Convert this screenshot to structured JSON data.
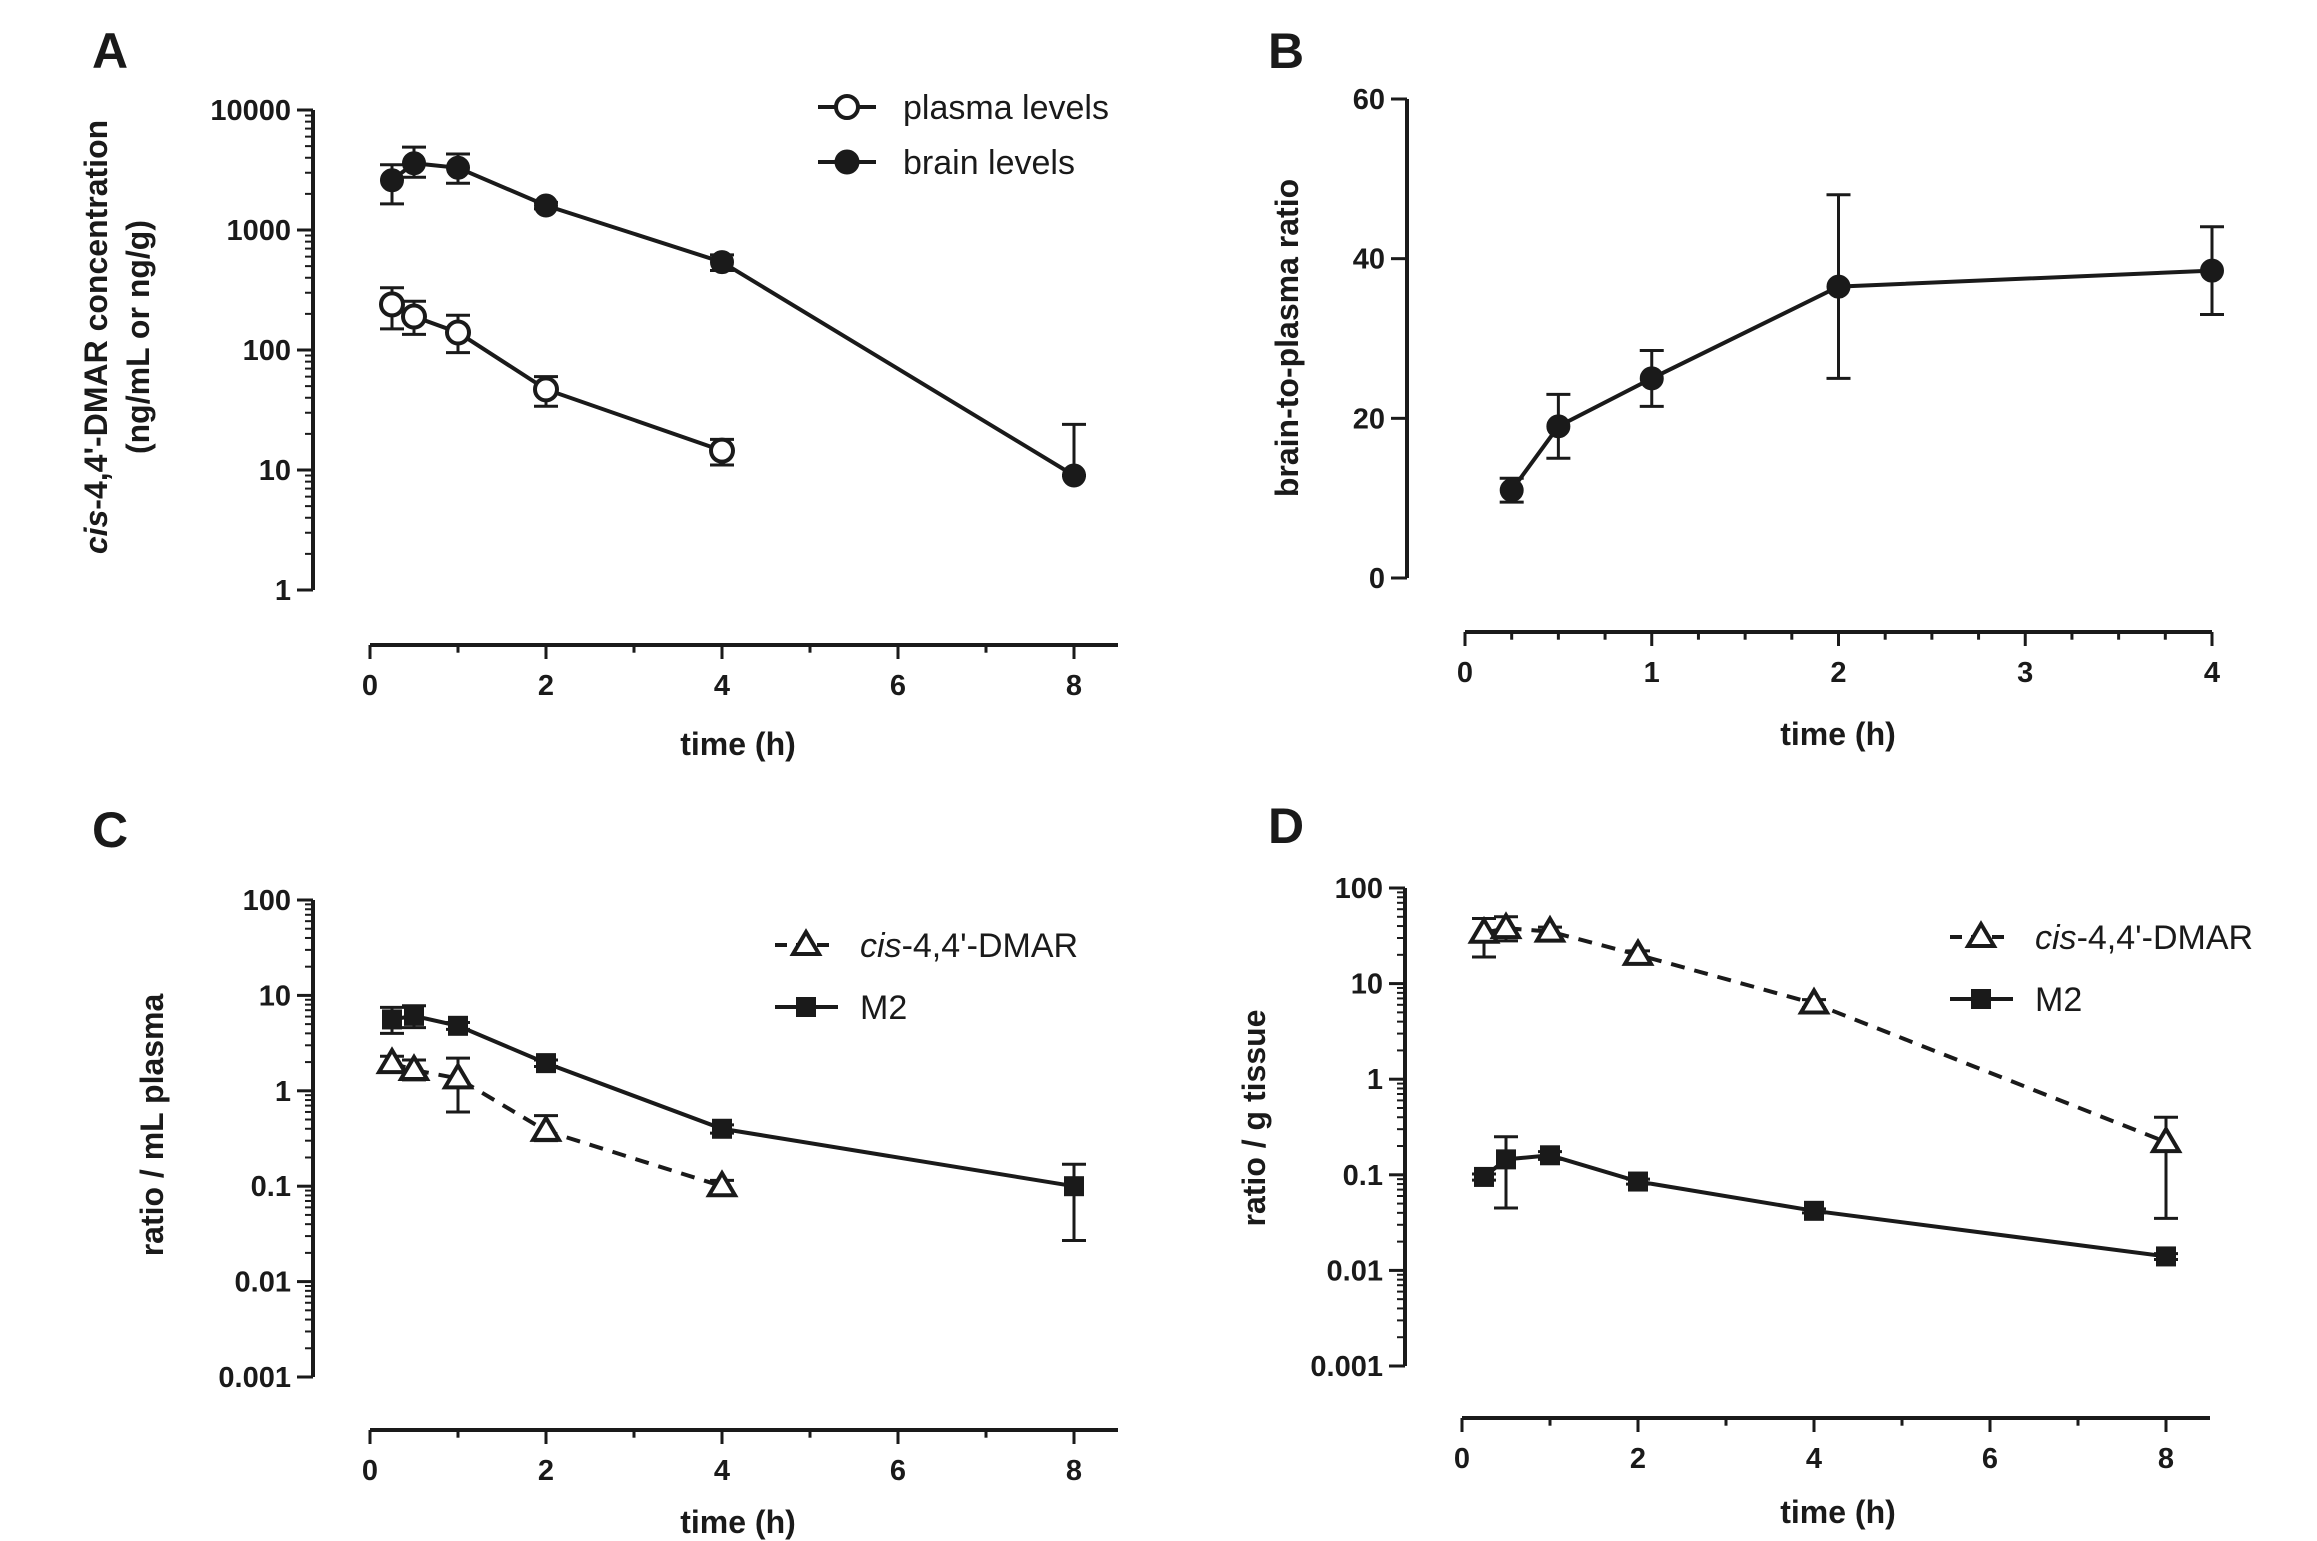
{
  "figure": {
    "panels": [
      {
        "letter": "A",
        "xlabel": "time (h)",
        "ylabel_line1": [
          {
            "text": "cis",
            "italic": true
          },
          {
            "text": "-4,4'-DMAR concentration",
            "italic": false
          }
        ],
        "ylabel_line2": "(ng/mL or ng/g)",
        "xticks": [
          "0",
          "2",
          "4",
          "6",
          "8"
        ],
        "yticks": [
          "1",
          "10",
          "100",
          "1000",
          "10000"
        ],
        "legend": [
          [
            {
              "text": "plasma levels",
              "italic": false
            }
          ],
          [
            {
              "text": "brain levels",
              "italic": false
            }
          ]
        ]
      },
      {
        "letter": "B",
        "xlabel": "time (h)",
        "ylabel_line1": [
          {
            "text": "brain-to-plasma ratio",
            "italic": false
          }
        ],
        "ylabel_line2": "",
        "xticks": [
          "0",
          "1",
          "2",
          "3",
          "4"
        ],
        "yticks": [
          "0",
          "20",
          "40",
          "60"
        ],
        "legend": []
      },
      {
        "letter": "C",
        "xlabel": "time (h)",
        "ylabel_line1": [
          {
            "text": "ratio / mL plasma",
            "italic": false
          }
        ],
        "ylabel_line2": "",
        "xticks": [
          "0",
          "2",
          "4",
          "6",
          "8"
        ],
        "yticks": [
          "0.001",
          "0.01",
          "0.1",
          "1",
          "10",
          "100"
        ],
        "legend": [
          [
            {
              "text": "cis",
              "italic": true
            },
            {
              "text": "-4,4'-DMAR",
              "italic": false
            }
          ],
          [
            {
              "text": "M2",
              "italic": false
            }
          ]
        ]
      },
      {
        "letter": "D",
        "xlabel": "time (h)",
        "ylabel_line1": [
          {
            "text": "ratio / g tissue",
            "italic": false
          }
        ],
        "ylabel_line2": "",
        "xticks": [
          "0",
          "2",
          "4",
          "6",
          "8"
        ],
        "yticks": [
          "0.001",
          "0.01",
          "0.1",
          "1",
          "10",
          "100"
        ],
        "legend": [
          [
            {
              "text": "cis",
              "italic": true
            },
            {
              "text": "-4,4'-DMAR",
              "italic": false
            }
          ],
          [
            {
              "text": "M2",
              "italic": false
            }
          ]
        ]
      }
    ]
  },
  "chart_data": [
    {
      "panel": "A",
      "type": "line",
      "xlabel": "time (h)",
      "ylabel": "cis-4,4'-DMAR concentration (ng/mL or ng/g)",
      "xlim": [
        0,
        8.5
      ],
      "ylim": [
        1,
        10000
      ],
      "yscale": "log",
      "grid": false,
      "legend_position": "top-right",
      "series": [
        {
          "name": "plasma levels",
          "marker": "open-circle",
          "line": "solid",
          "x": [
            0.25,
            0.5,
            1,
            2,
            4
          ],
          "y": [
            240,
            190,
            140,
            47,
            14.5
          ],
          "err_low": [
            150,
            135,
            95,
            34,
            11
          ],
          "err_high": [
            330,
            255,
            195,
            60,
            18
          ]
        },
        {
          "name": "brain levels",
          "marker": "filled-circle",
          "line": "solid",
          "x": [
            0.25,
            0.5,
            1,
            2,
            4,
            8
          ],
          "y": [
            2600,
            3600,
            3300,
            1600,
            540,
            9
          ],
          "err_low": [
            1650,
            2750,
            2450,
            1500,
            460,
            9
          ],
          "err_high": [
            3500,
            4900,
            4300,
            1700,
            620,
            24
          ]
        }
      ]
    },
    {
      "panel": "B",
      "type": "line",
      "xlabel": "time (h)",
      "ylabel": "brain-to-plasma ratio",
      "xlim": [
        0,
        4
      ],
      "ylim": [
        0,
        60
      ],
      "yscale": "linear",
      "grid": false,
      "series": [
        {
          "marker": "filled-circle",
          "line": "solid",
          "x": [
            0.25,
            0.5,
            1,
            2,
            4
          ],
          "y": [
            11,
            19,
            25,
            36.5,
            38.5
          ],
          "err_low": [
            9.5,
            15,
            21.5,
            25,
            33
          ],
          "err_high": [
            12.5,
            23,
            28.5,
            48,
            44
          ]
        }
      ]
    },
    {
      "panel": "C",
      "type": "line",
      "xlabel": "time (h)",
      "ylabel": "ratio / mL plasma",
      "xlim": [
        0,
        8.5
      ],
      "ylim": [
        0.001,
        100
      ],
      "yscale": "log",
      "grid": false,
      "legend_position": "top-right",
      "series": [
        {
          "name": "cis-4,4'-DMAR",
          "marker": "open-triangle",
          "line": "dashed",
          "x": [
            0.25,
            0.5,
            1,
            2,
            4
          ],
          "y": [
            1.95,
            1.65,
            1.35,
            0.38,
            0.1
          ],
          "err_low": [
            1.6,
            1.3,
            0.6,
            0.3,
            0.085
          ],
          "err_high": [
            2.3,
            2.1,
            2.2,
            0.55,
            0.115
          ]
        },
        {
          "name": "M2",
          "marker": "filled-square",
          "line": "solid",
          "x": [
            0.25,
            0.5,
            1,
            2,
            4,
            8
          ],
          "y": [
            5.6,
            6.1,
            4.8,
            1.95,
            0.4,
            0.1
          ],
          "err_low": [
            4.0,
            4.6,
            4.4,
            1.8,
            0.36,
            0.027
          ],
          "err_high": [
            7.5,
            7.8,
            5.2,
            2.1,
            0.44,
            0.17
          ]
        }
      ]
    },
    {
      "panel": "D",
      "type": "line",
      "xlabel": "time (h)",
      "ylabel": "ratio / g tissue",
      "xlim": [
        0,
        8.5
      ],
      "ylim": [
        0.001,
        100
      ],
      "yscale": "log",
      "grid": false,
      "legend_position": "top-right",
      "series": [
        {
          "name": "cis-4,4'-DMAR",
          "marker": "open-triangle",
          "line": "dashed",
          "x": [
            0.25,
            0.5,
            1,
            2,
            4,
            8
          ],
          "y": [
            34,
            38,
            35,
            20,
            6.2,
            0.22
          ],
          "err_low": [
            19,
            28,
            31,
            18,
            5.6,
            0.035
          ],
          "err_high": [
            48,
            50,
            39,
            22,
            6.8,
            0.4
          ]
        },
        {
          "name": "M2",
          "marker": "filled-square",
          "line": "solid",
          "x": [
            0.25,
            0.5,
            1,
            2,
            4,
            8
          ],
          "y": [
            0.095,
            0.145,
            0.16,
            0.085,
            0.042,
            0.014
          ],
          "err_low": [
            0.088,
            0.045,
            0.145,
            0.08,
            0.04,
            0.013
          ],
          "err_high": [
            0.102,
            0.25,
            0.175,
            0.09,
            0.044,
            0.015
          ]
        }
      ]
    }
  ]
}
